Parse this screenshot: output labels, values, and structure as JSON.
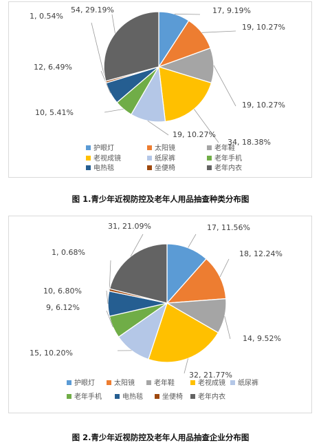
{
  "colors": {
    "eye_lamp": "#5B9BD5",
    "sunglasses": "#ED7D31",
    "elderly_shoes": "#A5A5A5",
    "presbyopia_glasses": "#FFC000",
    "diapers": "#B4C7E7",
    "elderly_phone": "#70AD47",
    "heating_blanket": "#255E91",
    "commode_chair": "#9E480E",
    "elderly_underwear": "#636363"
  },
  "chart_data": [
    {
      "type": "pie",
      "title": "图 1.青少年近视防控及老年人用品抽查种类分布图",
      "slices": [
        {
          "name": "护眼灯",
          "value": 17,
          "percent": "9.19%",
          "label": "17, 9.19%"
        },
        {
          "name": "太阳镜",
          "value": 19,
          "percent": "10.27%",
          "label": "19, 10.27%"
        },
        {
          "name": "老年鞋",
          "value": 19,
          "percent": "10.27%",
          "label": "19, 10.27%"
        },
        {
          "name": "老视成镜",
          "value": 34,
          "percent": "18.38%",
          "label": "34, 18.38%"
        },
        {
          "name": "纸尿裤",
          "value": 19,
          "percent": "10.27%",
          "label": "19, 10.27%"
        },
        {
          "name": "老年手机",
          "value": 10,
          "percent": "5.41%",
          "label": "10, 5.41%"
        },
        {
          "name": "电热毯",
          "value": 12,
          "percent": "6.49%",
          "label": "12, 6.49%"
        },
        {
          "name": "坐便椅",
          "value": 1,
          "percent": "0.54%",
          "label": "1, 0.54%"
        },
        {
          "name": "老年内衣",
          "value": 54,
          "percent": "29.19%",
          "label": "54, 29.19%"
        }
      ],
      "legend": {
        "placement": "bottom",
        "entries": [
          "护眼灯",
          "太阳镜",
          "老年鞋",
          "老视成镜",
          "纸尿裤",
          "老年手机",
          "电热毯",
          "坐便椅",
          "老年内衣"
        ]
      }
    },
    {
      "type": "pie",
      "title": "图 2.青少年近视防控及老年人用品抽查企业分布图",
      "slices": [
        {
          "name": "护眼灯",
          "value": 17,
          "percent": "11.56%",
          "label": "17, 11.56%"
        },
        {
          "name": "太阳镜",
          "value": 18,
          "percent": "12.24%",
          "label": "18, 12.24%"
        },
        {
          "name": "老年鞋",
          "value": 14,
          "percent": "9.52%",
          "label": "14, 9.52%"
        },
        {
          "name": "老视成镜",
          "value": 32,
          "percent": "21.77%",
          "label": "32, 21.77%"
        },
        {
          "name": "纸尿裤",
          "value": 15,
          "percent": "10.20%",
          "label": "15, 10.20%"
        },
        {
          "name": "老年手机",
          "value": 9,
          "percent": "6.12%",
          "label": "9, 6.12%"
        },
        {
          "name": "电热毯",
          "value": 10,
          "percent": "6.80%",
          "label": "10, 6.80%"
        },
        {
          "name": "坐便椅",
          "value": 1,
          "percent": "0.68%",
          "label": "1, 0.68%"
        },
        {
          "name": "老年内衣",
          "value": 31,
          "percent": "21.09%",
          "label": "31, 21.09%"
        }
      ],
      "legend": {
        "placement": "bottom",
        "entries": [
          "护眼灯",
          "太阳镜",
          "老年鞋",
          "老视成镜",
          "纸尿裤",
          "老年手机",
          "电热毯",
          "坐便椅",
          "老年内衣"
        ]
      }
    }
  ]
}
